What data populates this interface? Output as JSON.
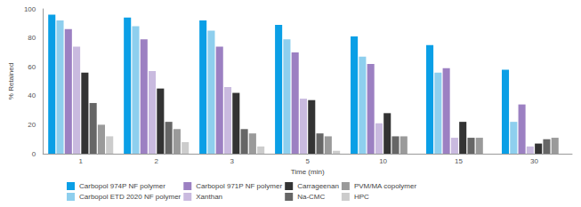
{
  "chart_data": {
    "type": "bar",
    "x_label": "Time (min)",
    "y_label": "% Retained",
    "categories": [
      "1",
      "2",
      "3",
      "5",
      "10",
      "15",
      "30"
    ],
    "series": [
      {
        "name": "Carbopol 974P NF polymer",
        "color": "#0a9fe6",
        "values": [
          96,
          94,
          92,
          89,
          81,
          75,
          58
        ]
      },
      {
        "name": "Carbopol ETD 2020 NF polymer",
        "color": "#8ecfee",
        "values": [
          92,
          88,
          85,
          79,
          67,
          56,
          22
        ]
      },
      {
        "name": "Carbopol 971P NF polymer",
        "color": "#9c80c2",
        "values": [
          86,
          79,
          74,
          70,
          62,
          59,
          34
        ]
      },
      {
        "name": "Xanthan",
        "color": "#c9badf",
        "values": [
          74,
          57,
          46,
          38,
          21,
          11,
          5
        ]
      },
      {
        "name": "Carrageenan",
        "color": "#333333",
        "values": [
          56,
          45,
          42,
          37,
          28,
          22,
          7
        ]
      },
      {
        "name": "Na-CMC",
        "color": "#666666",
        "values": [
          35,
          22,
          17,
          14,
          12,
          11,
          10
        ]
      },
      {
        "name": "PVM/MA copolymer",
        "color": "#9a9a9a",
        "values": [
          20,
          17,
          14,
          12,
          12,
          11,
          11
        ]
      },
      {
        "name": "HPC",
        "color": "#cccccc",
        "values": [
          12,
          8,
          5,
          2,
          null,
          null,
          null
        ]
      }
    ],
    "ylim": [
      0,
      100
    ],
    "yticks": [
      0,
      20,
      40,
      60,
      80,
      100
    ],
    "grid": false,
    "legend": "bottom"
  }
}
